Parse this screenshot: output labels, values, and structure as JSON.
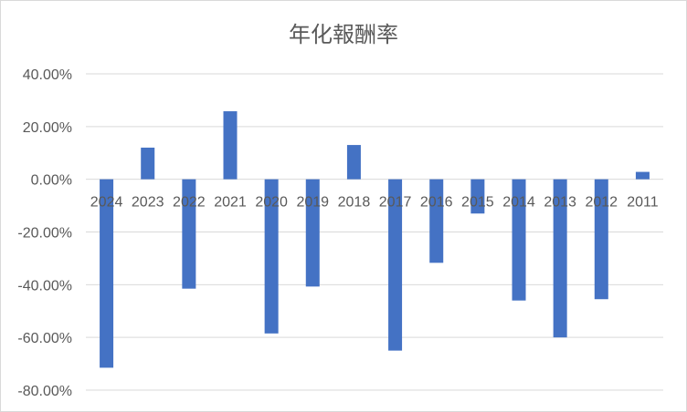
{
  "chart_data": {
    "type": "bar",
    "title": "年化報酬率",
    "xlabel": "",
    "ylabel": "",
    "categories": [
      "2024",
      "2023",
      "2022",
      "2021",
      "2020",
      "2019",
      "2018",
      "2017",
      "2016",
      "2015",
      "2014",
      "2013",
      "2012",
      "2011"
    ],
    "series": [
      {
        "values": [
          -71.5,
          12.0,
          -41.5,
          25.8,
          -58.5,
          -40.7,
          13.0,
          -65.0,
          -31.7,
          -13.0,
          -46.0,
          -60.0,
          -45.5,
          2.8
        ]
      }
    ],
    "ylim": [
      -80,
      40
    ],
    "yticks": [
      "40.00%",
      "20.00%",
      "0.00%",
      "-20.00%",
      "-40.00%",
      "-60.00%",
      "-80.00%"
    ],
    "ytick_values": [
      40,
      20,
      0,
      -20,
      -40,
      -60,
      -80
    ],
    "grid": true,
    "bar_color": "#4472c4",
    "legend": "none"
  }
}
